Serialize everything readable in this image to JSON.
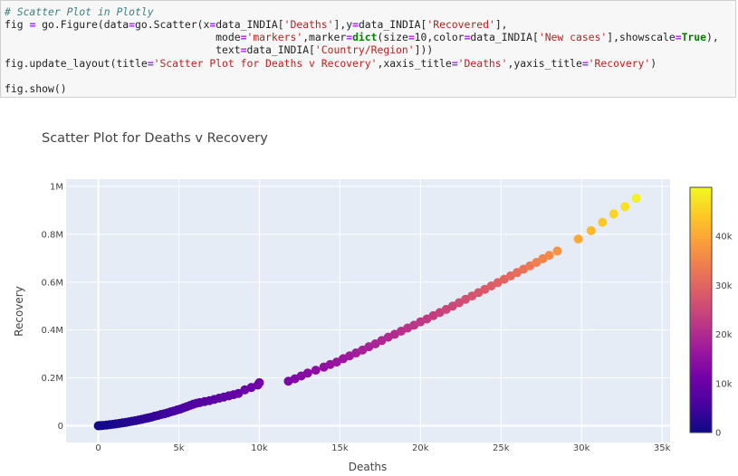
{
  "code": {
    "line1": "# Scatter Plot in Plotly",
    "line2_a": "fig ",
    "line2_b": "=",
    "line2_c": " go.Figure(data",
    "line2_d": "=",
    "line2_e": "go.Scatter(x",
    "line2_f": "=",
    "line2_g": "data_INDIA[",
    "line2_h": "'Deaths'",
    "line2_i": "],y",
    "line2_j": "=",
    "line2_k": "data_INDIA[",
    "line2_l": "'Recovered'",
    "line2_m": "],",
    "line3_a": "                                  mode",
    "line3_b": "=",
    "line3_c": "'markers'",
    "line3_d": ",marker",
    "line3_e": "=",
    "line3_f": "dict",
    "line3_g": "(size",
    "line3_h": "=",
    "line3_i": "10",
    "line3_j": ",color",
    "line3_k": "=",
    "line3_l": "data_INDIA[",
    "line3_m": "'New cases'",
    "line3_n": "],showscale",
    "line3_o": "=",
    "line3_p": "True",
    "line3_q": "),",
    "line4_a": "                                  text",
    "line4_b": "=",
    "line4_c": "data_INDIA[",
    "line4_d": "'Country/Region'",
    "line4_e": "]))",
    "line5_a": "fig.update_layout(title",
    "line5_b": "=",
    "line5_c": "'Scatter Plot for Deaths v Recovery'",
    "line5_d": ",xaxis_title",
    "line5_e": "=",
    "line5_f": "'Deaths'",
    "line5_g": ",yaxis_title",
    "line5_h": "=",
    "line5_i": "'Recovery'",
    "line5_j": ")",
    "line7": "fig.show()"
  },
  "chart_data": {
    "type": "scatter",
    "title": "Scatter Plot for Deaths v Recovery",
    "xlabel": "Deaths",
    "ylabel": "Recovery",
    "xlim": [
      -2000,
      35500
    ],
    "ylim": [
      -70000,
      1030000
    ],
    "x_ticks": [
      0,
      5000,
      10000,
      15000,
      20000,
      25000,
      30000,
      35000
    ],
    "x_tick_labels": [
      "0",
      "5k",
      "10k",
      "15k",
      "20k",
      "25k",
      "30k",
      "35k"
    ],
    "y_ticks": [
      0,
      200000,
      400000,
      600000,
      800000,
      1000000
    ],
    "y_tick_labels": [
      "0",
      "0.2M",
      "0.4M",
      "0.6M",
      "0.8M",
      "1M"
    ],
    "colorscale": "Plasma",
    "color_range": [
      0,
      50000
    ],
    "colorbar_ticks": [
      0,
      10000,
      20000,
      30000,
      40000
    ],
    "colorbar_tick_labels": [
      "0",
      "10k",
      "20k",
      "30k",
      "40k"
    ],
    "grid": true,
    "points": [
      {
        "x": 0,
        "y": 0,
        "c": 200
      },
      {
        "x": 50,
        "y": 300,
        "c": 300
      },
      {
        "x": 150,
        "y": 800,
        "c": 500
      },
      {
        "x": 300,
        "y": 1500,
        "c": 600
      },
      {
        "x": 500,
        "y": 3000,
        "c": 800
      },
      {
        "x": 700,
        "y": 4500,
        "c": 1000
      },
      {
        "x": 900,
        "y": 6000,
        "c": 1200
      },
      {
        "x": 1100,
        "y": 8000,
        "c": 1400
      },
      {
        "x": 1300,
        "y": 10000,
        "c": 1600
      },
      {
        "x": 1500,
        "y": 12000,
        "c": 1800
      },
      {
        "x": 1700,
        "y": 14000,
        "c": 2000
      },
      {
        "x": 1900,
        "y": 16500,
        "c": 2200
      },
      {
        "x": 2100,
        "y": 19000,
        "c": 2400
      },
      {
        "x": 2300,
        "y": 21000,
        "c": 2600
      },
      {
        "x": 2500,
        "y": 24000,
        "c": 2800
      },
      {
        "x": 2700,
        "y": 27000,
        "c": 3000
      },
      {
        "x": 2900,
        "y": 30000,
        "c": 3200
      },
      {
        "x": 3100,
        "y": 33000,
        "c": 3400
      },
      {
        "x": 3300,
        "y": 36000,
        "c": 3600
      },
      {
        "x": 3500,
        "y": 40000,
        "c": 3900
      },
      {
        "x": 3700,
        "y": 43000,
        "c": 4100
      },
      {
        "x": 3900,
        "y": 47000,
        "c": 4300
      },
      {
        "x": 4100,
        "y": 50000,
        "c": 4600
      },
      {
        "x": 4300,
        "y": 54000,
        "c": 4800
      },
      {
        "x": 4500,
        "y": 58000,
        "c": 5100
      },
      {
        "x": 4700,
        "y": 62000,
        "c": 5400
      },
      {
        "x": 4900,
        "y": 66000,
        "c": 5700
      },
      {
        "x": 5100,
        "y": 70000,
        "c": 6000
      },
      {
        "x": 5300,
        "y": 75000,
        "c": 6200
      },
      {
        "x": 5500,
        "y": 80000,
        "c": 6400
      },
      {
        "x": 5700,
        "y": 85000,
        "c": 6700
      },
      {
        "x": 5900,
        "y": 90000,
        "c": 7000
      },
      {
        "x": 6100,
        "y": 94000,
        "c": 7200
      },
      {
        "x": 6300,
        "y": 97000,
        "c": 7400
      },
      {
        "x": 6600,
        "y": 101000,
        "c": 7600
      },
      {
        "x": 6900,
        "y": 105000,
        "c": 7900
      },
      {
        "x": 7200,
        "y": 110000,
        "c": 8200
      },
      {
        "x": 7500,
        "y": 115000,
        "c": 8500
      },
      {
        "x": 7800,
        "y": 120000,
        "c": 8800
      },
      {
        "x": 8100,
        "y": 125000,
        "c": 9000
      },
      {
        "x": 8400,
        "y": 130000,
        "c": 9300
      },
      {
        "x": 8700,
        "y": 135000,
        "c": 9600
      },
      {
        "x": 9100,
        "y": 150000,
        "c": 9900
      },
      {
        "x": 9500,
        "y": 160000,
        "c": 10300
      },
      {
        "x": 9900,
        "y": 170000,
        "c": 10800
      },
      {
        "x": 10000,
        "y": 180000,
        "c": 11200
      },
      {
        "x": 11800,
        "y": 186000,
        "c": 12500
      },
      {
        "x": 12200,
        "y": 196000,
        "c": 13000
      },
      {
        "x": 12600,
        "y": 208000,
        "c": 13500
      },
      {
        "x": 13000,
        "y": 220000,
        "c": 14000
      },
      {
        "x": 13500,
        "y": 232000,
        "c": 14500
      },
      {
        "x": 14000,
        "y": 245000,
        "c": 15000
      },
      {
        "x": 14400,
        "y": 256000,
        "c": 15500
      },
      {
        "x": 14800,
        "y": 266000,
        "c": 16000
      },
      {
        "x": 15200,
        "y": 280000,
        "c": 16500
      },
      {
        "x": 15600,
        "y": 292000,
        "c": 17000
      },
      {
        "x": 16000,
        "y": 304000,
        "c": 17500
      },
      {
        "x": 16400,
        "y": 316000,
        "c": 18000
      },
      {
        "x": 16800,
        "y": 330000,
        "c": 18500
      },
      {
        "x": 17200,
        "y": 342000,
        "c": 19000
      },
      {
        "x": 17600,
        "y": 356000,
        "c": 19500
      },
      {
        "x": 18000,
        "y": 370000,
        "c": 20000
      },
      {
        "x": 18400,
        "y": 382000,
        "c": 20500
      },
      {
        "x": 18800,
        "y": 395000,
        "c": 21000
      },
      {
        "x": 19200,
        "y": 408000,
        "c": 21500
      },
      {
        "x": 19600,
        "y": 420000,
        "c": 22000
      },
      {
        "x": 20000,
        "y": 434000,
        "c": 22500
      },
      {
        "x": 20400,
        "y": 446000,
        "c": 23000
      },
      {
        "x": 20800,
        "y": 460000,
        "c": 23500
      },
      {
        "x": 21200,
        "y": 473000,
        "c": 24000
      },
      {
        "x": 21600,
        "y": 486000,
        "c": 24600
      },
      {
        "x": 22000,
        "y": 500000,
        "c": 25200
      },
      {
        "x": 22400,
        "y": 514000,
        "c": 25800
      },
      {
        "x": 22800,
        "y": 528000,
        "c": 26400
      },
      {
        "x": 23200,
        "y": 542000,
        "c": 27000
      },
      {
        "x": 23600,
        "y": 556000,
        "c": 27600
      },
      {
        "x": 24000,
        "y": 570000,
        "c": 28200
      },
      {
        "x": 24400,
        "y": 584000,
        "c": 28800
      },
      {
        "x": 24800,
        "y": 598000,
        "c": 29400
      },
      {
        "x": 25200,
        "y": 612000,
        "c": 30000
      },
      {
        "x": 25600,
        "y": 626000,
        "c": 30800
      },
      {
        "x": 26000,
        "y": 640000,
        "c": 31600
      },
      {
        "x": 26400,
        "y": 654000,
        "c": 32400
      },
      {
        "x": 26800,
        "y": 668000,
        "c": 33200
      },
      {
        "x": 27200,
        "y": 682000,
        "c": 34000
      },
      {
        "x": 27600,
        "y": 698000,
        "c": 35000
      },
      {
        "x": 28000,
        "y": 712000,
        "c": 36000
      },
      {
        "x": 28500,
        "y": 730000,
        "c": 37000
      },
      {
        "x": 29800,
        "y": 780000,
        "c": 40000
      },
      {
        "x": 30600,
        "y": 815000,
        "c": 42000
      },
      {
        "x": 31300,
        "y": 850000,
        "c": 44000
      },
      {
        "x": 32000,
        "y": 885000,
        "c": 45500
      },
      {
        "x": 32700,
        "y": 915000,
        "c": 47000
      },
      {
        "x": 33400,
        "y": 950000,
        "c": 49000
      }
    ]
  }
}
